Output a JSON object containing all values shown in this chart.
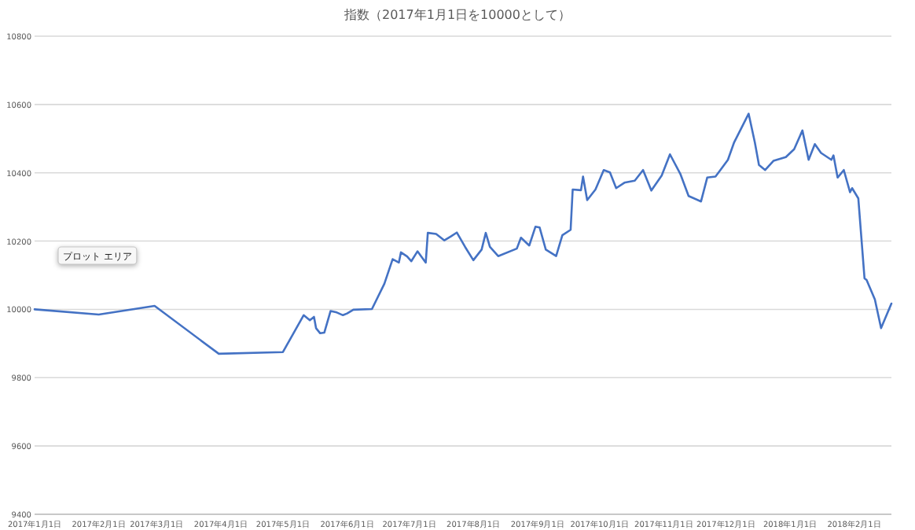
{
  "chart_data": {
    "type": "line",
    "title": "指数（2017年1月1日を10000として）",
    "x": [
      "2017-01-01",
      "2017-02-01",
      "2017-02-28",
      "2017-03-31",
      "2017-05-01",
      "2017-05-11",
      "2017-05-14",
      "2017-05-16",
      "2017-05-17",
      "2017-05-19",
      "2017-05-21",
      "2017-05-24",
      "2017-05-27",
      "2017-05-30",
      "2017-06-01",
      "2017-06-04",
      "2017-06-13",
      "2017-06-19",
      "2017-06-23",
      "2017-06-26",
      "2017-06-27",
      "2017-06-30",
      "2017-07-02",
      "2017-07-05",
      "2017-07-09",
      "2017-07-10",
      "2017-07-14",
      "2017-07-18",
      "2017-07-21",
      "2017-07-24",
      "2017-07-28",
      "2017-08-01",
      "2017-08-05",
      "2017-08-07",
      "2017-08-09",
      "2017-08-13",
      "2017-08-22",
      "2017-08-24",
      "2017-08-28",
      "2017-08-31",
      "2017-09-02",
      "2017-09-05",
      "2017-09-10",
      "2017-09-13",
      "2017-09-17",
      "2017-09-18",
      "2017-09-22",
      "2017-09-23",
      "2017-09-25",
      "2017-09-29",
      "2017-10-03",
      "2017-10-06",
      "2017-10-09",
      "2017-10-13",
      "2017-10-18",
      "2017-10-22",
      "2017-10-26",
      "2017-10-31",
      "2017-11-04",
      "2017-11-09",
      "2017-11-13",
      "2017-11-19",
      "2017-11-22",
      "2017-11-26",
      "2017-11-28",
      "2017-12-02",
      "2017-12-05",
      "2017-12-12",
      "2017-12-15",
      "2017-12-17",
      "2017-12-20",
      "2017-12-24",
      "2017-12-30",
      "2018-01-03",
      "2018-01-07",
      "2018-01-10",
      "2018-01-13",
      "2018-01-16",
      "2018-01-21",
      "2018-01-22",
      "2018-01-24",
      "2018-01-27",
      "2018-01-30",
      "2018-01-31",
      "2018-02-03",
      "2018-02-06",
      "2018-02-07",
      "2018-02-11",
      "2018-02-14",
      "2018-02-19"
    ],
    "series": [
      {
        "color": "#4472c4",
        "values": [
          10000,
          9985,
          10010,
          9870,
          9875,
          9983,
          9968,
          9978,
          9945,
          9930,
          9932,
          9995,
          9991,
          9983,
          9988,
          9999,
          10001,
          10075,
          10147,
          10137,
          10167,
          10155,
          10141,
          10170,
          10137,
          10224,
          10221,
          10202,
          10213,
          10225,
          10183,
          10144,
          10175,
          10224,
          10183,
          10156,
          10178,
          10210,
          10187,
          10242,
          10240,
          10175,
          10156,
          10217,
          10233,
          10351,
          10349,
          10389,
          10320,
          10351,
          10408,
          10401,
          10355,
          10371,
          10377,
          10408,
          10348,
          10392,
          10454,
          10397,
          10332,
          10316,
          10386,
          10389,
          10405,
          10438,
          10489,
          10573,
          10489,
          10423,
          10408,
          10435,
          10446,
          10469,
          10524,
          10438,
          10484,
          10458,
          10438,
          10451,
          10386,
          10408,
          10343,
          10355,
          10325,
          10091,
          10086,
          10029,
          9945,
          10017
        ]
      }
    ],
    "xlim": [
      "2017-01-01",
      "2018-02-19"
    ],
    "xticks": [
      {
        "value": "2017-01-01",
        "label": "2017年1月1日"
      },
      {
        "value": "2017-02-01",
        "label": "2017年2月1日"
      },
      {
        "value": "2017-03-01",
        "label": "2017年3月1日"
      },
      {
        "value": "2017-04-01",
        "label": "2017年4月1日"
      },
      {
        "value": "2017-05-01",
        "label": "2017年5月1日"
      },
      {
        "value": "2017-06-01",
        "label": "2017年6月1日"
      },
      {
        "value": "2017-07-01",
        "label": "2017年7月1日"
      },
      {
        "value": "2017-08-01",
        "label": "2017年8月1日"
      },
      {
        "value": "2017-09-01",
        "label": "2017年9月1日"
      },
      {
        "value": "2017-10-01",
        "label": "2017年10月1日"
      },
      {
        "value": "2017-11-01",
        "label": "2017年11月1日"
      },
      {
        "value": "2017-12-01",
        "label": "2017年12月1日"
      },
      {
        "value": "2018-01-01",
        "label": "2018年1月1日"
      },
      {
        "value": "2018-02-01",
        "label": "2018年2月1日"
      }
    ],
    "ylim": [
      9400,
      10800
    ],
    "yticks": [
      9400,
      9600,
      9800,
      10000,
      10200,
      10400,
      10600,
      10800
    ],
    "grid": "y",
    "annotations": [
      "プロット エリア"
    ]
  }
}
